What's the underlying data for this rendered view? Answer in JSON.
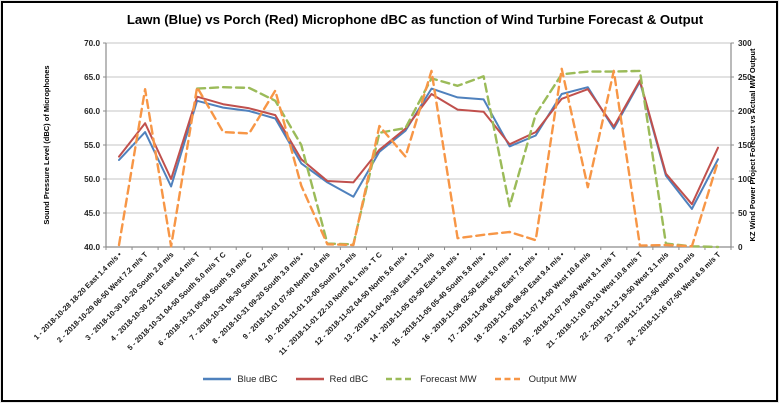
{
  "window": {
    "background": "#ffffff",
    "border_color": "#000000"
  },
  "chart_data": {
    "type": "line",
    "title": "Lawn (Blue) vs Porch (Red) Microphone dBC as function of Wind Turbine Forecast & Output",
    "grid": true,
    "legend_position": "bottom",
    "left_axis": {
      "label": "Sound Pressure Level (dBC) of Microphones",
      "min": 40,
      "max": 70,
      "step": 5,
      "tick_labels": [
        "40.0",
        "45.0",
        "50.0",
        "55.0",
        "60.0",
        "65.0",
        "70.0"
      ]
    },
    "right_axis": {
      "label": "KZ Wind Power Project Forecast vs Actual MW Output",
      "min": 0,
      "max": 300,
      "step": 50,
      "tick_labels": [
        "0",
        "50",
        "100",
        "150",
        "200",
        "250",
        "300"
      ]
    },
    "categories": [
      "1 - 2018-10-28 18-20 East 1.4 m/s •",
      "2 - 2018-10-29 06-50 West 7.2 m/s T",
      "3 - 2018-10-30 10-20 South 2.8 m/s",
      "4 - 2018-10-30 21-10 East 6.4 m/s T",
      "5 - 2018-10-31 04-50 South 5.0 m/s T C",
      "6 - 2018-10-31 05-00 South 5.0 m/s C",
      "7 - 2018-10-31 06-30 South 4.2 m/s",
      "8 - 2018-10-31 09-20 South 3.9 m/s •",
      "9 - 2018-11-01 07-50 North 0.8 m/s",
      "10 - 2018-11-01 12-00 South 2.5 m/s",
      "11 - 2018-11-01 22-10 North 6.1 m/s • T C",
      "12 - 2018-11-02 04-50 North 5.6 m/s •",
      "13 - 2018-11-04 20-30 East 13.3 m/s",
      "14 - 2018-11-05 03-50 East 5.8 m/s •",
      "15 - 2018-11-05 05-40 South 5.8 m/s •",
      "16 - 2018-11-06 02-50 East 5.0 m/s •",
      "17 - 2018-11-06 06-00 East 7.5 m/s •",
      "18 - 2018-11-06 08-50 East 9.4 m/s •",
      "19 - 2018-11-07 14-00 West 10.6 m/s",
      "20 - 2018-11-07 19-50 West 8.1 m/s T",
      "21 - 2018-11-10 03-10 West 10.8 m/s T",
      "22 - 2018-11-12 19-50 West 3.1 m/s",
      "23 - 2018-11-12 23-50 North 0.0 m/s",
      "24 - 2018-11-16 07-50 West 6.9 m/s T"
    ],
    "series": [
      {
        "name": "Blue dBC",
        "color": "#4F81BD",
        "style": "solid",
        "axis": "left",
        "values": [
          52.8,
          56.9,
          48.9,
          61.5,
          60.5,
          60.0,
          58.9,
          52.3,
          49.5,
          47.4,
          54.0,
          57.1,
          63.3,
          62.0,
          61.7,
          54.8,
          56.4,
          62.5,
          63.5,
          57.4,
          64.3,
          50.5,
          45.6,
          52.9
        ]
      },
      {
        "name": "Red dBC",
        "color": "#C0504D",
        "style": "solid",
        "axis": "left",
        "values": [
          53.3,
          58.2,
          50.0,
          62.1,
          61.0,
          60.4,
          59.4,
          52.9,
          49.7,
          49.5,
          54.3,
          57.4,
          62.5,
          60.2,
          59.9,
          55.1,
          56.9,
          61.8,
          63.2,
          57.7,
          64.5,
          50.8,
          46.3,
          54.6
        ]
      },
      {
        "name": "Forecast MW",
        "color": "#9BBB59",
        "style": "dashed",
        "axis": "right",
        "values": [
          null,
          null,
          null,
          233,
          235,
          234,
          215,
          150,
          5,
          4,
          168,
          175,
          248,
          237,
          251,
          60,
          195,
          254,
          258,
          258,
          259,
          5,
          1,
          0
        ]
      },
      {
        "name": "Output MW",
        "color": "#F79646",
        "style": "dashed",
        "axis": "right",
        "values": [
          3,
          232,
          1,
          235,
          169,
          167,
          230,
          90,
          4,
          3,
          178,
          133,
          259,
          13,
          18,
          22,
          10,
          262,
          88,
          259,
          2,
          3,
          1,
          126
        ]
      }
    ],
    "style": {
      "gridline_color": "#C6C6C6",
      "axis_color": "#8C8C8C",
      "tick_text_color": "#262626",
      "title_color": "#000000"
    }
  }
}
